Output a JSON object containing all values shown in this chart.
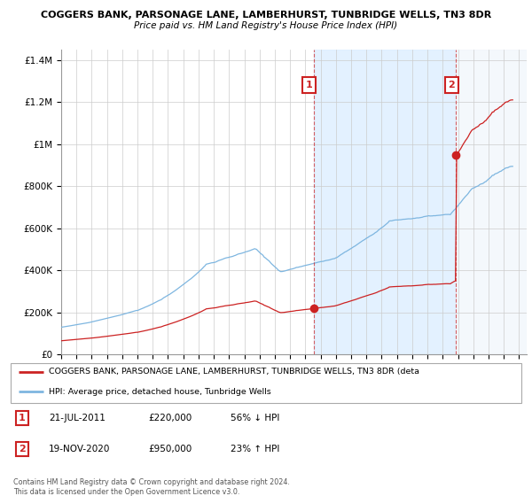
{
  "title": "COGGERS BANK, PARSONAGE LANE, LAMBERHURST, TUNBRIDGE WELLS, TN3 8DR",
  "subtitle": "Price paid vs. HM Land Registry's House Price Index (HPI)",
  "hpi_color": "#7EB6E0",
  "price_color": "#CC2222",
  "background_color": "#FFFFFF",
  "grid_color": "#CCCCCC",
  "shade_color": "#DDEEFF",
  "ylim": [
    0,
    1450000
  ],
  "yticks": [
    0,
    200000,
    400000,
    600000,
    800000,
    1000000,
    1200000,
    1400000
  ],
  "ytick_labels": [
    "£0",
    "£200K",
    "£400K",
    "£600K",
    "£800K",
    "£1M",
    "£1.2M",
    "£1.4M"
  ],
  "legend_line1": "COGGERS BANK, PARSONAGE LANE, LAMBERHURST, TUNBRIDGE WELLS, TN3 8DR (deta",
  "legend_line2": "HPI: Average price, detached house, Tunbridge Wells",
  "table_entries": [
    {
      "num": "1",
      "date": "21-JUL-2011",
      "price": "£220,000",
      "hpi": "56% ↓ HPI"
    },
    {
      "num": "2",
      "date": "19-NOV-2020",
      "price": "£950,000",
      "hpi": "23% ↑ HPI"
    }
  ],
  "footer": "Contains HM Land Registry data © Crown copyright and database right 2024.\nThis data is licensed under the Open Government Licence v3.0.",
  "sale1_x": 2011.55,
  "sale1_y": 220000,
  "sale2_x": 2020.88,
  "sale2_y": 950000,
  "xmin": 1995,
  "xmax": 2025.5
}
